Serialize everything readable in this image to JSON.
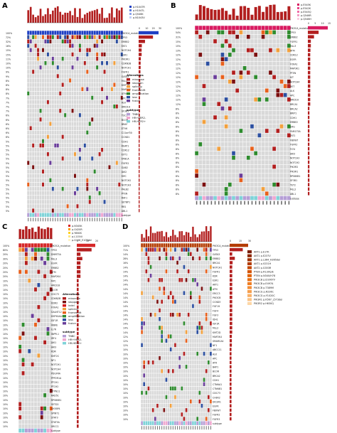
{
  "panels": [
    {
      "label": "A",
      "top_legend": [
        "p.H1047R",
        "p.H1047L",
        "p.Q546K",
        "p.N1043V"
      ],
      "top_legend_colors": [
        "#1e3fc4",
        "#5b7be0",
        "#8ea6ee",
        "#c2d0f7"
      ],
      "pct_scale": [
        "0",
        "10",
        "20",
        "30"
      ],
      "genes": [
        "PIK3CA_mutation",
        "TP53",
        "ERBB2",
        "FAT1",
        "NOTCH4",
        "ESR1",
        "PIK3R1",
        "CDKN2B",
        "NOTCH1",
        "FGFR1",
        "GATA3",
        "MLL2",
        "KMT2D",
        "MAP3K1",
        "ATM",
        "APC",
        "ALK",
        "ARID1A",
        "SF3B1",
        "TSC1",
        "BCOR",
        "BRAF",
        "ETV6",
        "C11orf30",
        "CCND1",
        "CDH1",
        "KEAP1",
        "CDK12",
        "EXT1",
        "FANCA",
        "FGFR2",
        "GAB2",
        "JAK2",
        "MYC",
        "NOTCH2",
        "NOTCH3",
        "PALB2",
        "PTEN",
        "RAF1",
        "SETBP1",
        "RB1",
        "ABL1",
        "subtype"
      ],
      "pcts": [
        "100%",
        "72%",
        "32%",
        "16%",
        "15%",
        "15%",
        "11%",
        "10%",
        "10%",
        "9%",
        "9%",
        "8%",
        "8%",
        "8%",
        "8%",
        "7%",
        "7%",
        "7%",
        "7%",
        "6%",
        "6%",
        "6%",
        "6%",
        "6%",
        "6%",
        "5%",
        "5%",
        "5%",
        "5%",
        "5%",
        "5%",
        "5%",
        "5%",
        "5%",
        "5%",
        "5%",
        "5%",
        "5%",
        "5%",
        "5%",
        "5%",
        "5%",
        ""
      ],
      "legend_title": "Alterations",
      "legend_items": [
        "missense",
        "stopgain",
        "splicing",
        "frameshift",
        "amplification",
        "loss",
        "fusion"
      ],
      "subtype_title": "subtype",
      "subtype_items": [
        "TNBC",
        "HR+HER2-",
        "HR-HER2+"
      ],
      "sample_count": 39
    },
    {
      "label": "B",
      "top_legend": [
        "p.E545K",
        "p.E542K",
        "p.E545Q",
        "p.Q546R",
        "p.Q546H"
      ],
      "top_legend_colors": [
        "#d81b60",
        "#e8438a",
        "#f06ea8",
        "#f59cc4",
        "#fbcde2"
      ],
      "pct_scale": [
        "0",
        "5",
        "10",
        "15"
      ],
      "genes": [
        "PIK3CA_mutation",
        "TP53",
        "ERBB2",
        "FGFR1",
        "MLL3",
        "ATM",
        "CDK12",
        "EGFR",
        "FOXA1",
        "MAP3K1",
        "PTEN",
        "KIT",
        "NOTCH4",
        "RET",
        "ALK",
        "APC",
        "ARID1A",
        "BRCA1",
        "BRCA2",
        "BRIP1",
        "CDH1",
        "ERBB3",
        "ERG",
        "FAM175A",
        "FAT1",
        "FBXW7",
        "FGFR2",
        "FLT4",
        "JAK3",
        "NOTCH3",
        "NOTCH2",
        "PIK3R2",
        "PIK3R1",
        "RPS6KB1",
        "SF3B1",
        "TET2",
        "MLL2",
        "ABL1",
        "subtype"
      ],
      "pcts": [
        "100%",
        "54%",
        "31%",
        "15%",
        "15%",
        "13%",
        "12%",
        "12%",
        "12%",
        "12%",
        "12%",
        "12%",
        "12%",
        "12%",
        "12%",
        "12%",
        "12%",
        "12%",
        "8%",
        "8%",
        "8%",
        "8%",
        "8%",
        "8%",
        "8%",
        "8%",
        "8%",
        "8%",
        "8%",
        "8%",
        "8%",
        "8%",
        "8%",
        "8%",
        "8%",
        "8%",
        "8%",
        "8%",
        ""
      ],
      "sample_count": 26
    },
    {
      "label": "C",
      "top_legend": [
        "p.N345K",
        "p.G420R",
        "p.Y880S",
        "p.L1154I",
        "p.G106_E109del"
      ],
      "top_legend_colors": [
        "#d62728",
        "#ff9900",
        "#ffd21f",
        "#ffe680",
        "#fff3c2"
      ],
      "pct_scale": [
        "0",
        "10",
        "20"
      ],
      "genes": [
        "PIK3CA_mutation",
        "TP53",
        "DNMT3A",
        "MLL3",
        "EGFR",
        "ERBB2",
        "ATM",
        "MAP2K4",
        "MYC",
        "ARID1B",
        "BCOR",
        "CDC73",
        "CDKN2B",
        "DDR2",
        "FOXA1",
        "GALNT12",
        "HSP90AA1",
        "IGF1R",
        "IKBKE",
        "IL7R",
        "INPPL1",
        "IRF4",
        "JAK1",
        "JAK3",
        "KDR",
        "KMT2C",
        "NF1",
        "NOTCH1",
        "NOTCH4",
        "PDGFRA",
        "PPP2R1A",
        "PTCH1",
        "PTCH2",
        "PTPN11",
        "RAD51",
        "RPS6KB1",
        "SETD2",
        "SH3BP4",
        "SPINT1",
        "STAT3",
        "STAT5A",
        "XRCC1",
        "subtype"
      ],
      "pcts": [
        "100%",
        "80%",
        "20%",
        "30%",
        "20%",
        "20%",
        "20%",
        "20%",
        "10%",
        "10%",
        "10%",
        "10%",
        "10%",
        "10%",
        "10%",
        "10%",
        "10%",
        "10%",
        "10%",
        "10%",
        "10%",
        "10%",
        "10%",
        "10%",
        "10%",
        "10%",
        "10%",
        "10%",
        "10%",
        "10%",
        "10%",
        "10%",
        "10%",
        "10%",
        "10%",
        "10%",
        "10%",
        "10%",
        "10%",
        "10%",
        "10%",
        "10%",
        ""
      ],
      "legend_title": "Alterations",
      "legend_items": [
        "missense",
        "stopgain",
        "indel",
        "splicing",
        "frameshift",
        "amplification",
        "loss",
        "fusion"
      ],
      "subtype_title": "subtype",
      "subtype_items": [
        "TNBC",
        "HR+HER2-",
        "HR-HER2+"
      ],
      "sample_count": 11
    },
    {
      "label": "D",
      "top_legend": [
        "AKT1 p.E17K",
        "AKT1 p.E237V",
        "AKT1 p.L364_H365del",
        "AKT1 p.V231H",
        "AKT2 p.G353R",
        "PTEN p.R130Q/E",
        "PTEN p.N340/H78",
        "PIK3CB p.D1067V",
        "PIK3CB p.E497A",
        "PIK3CB p.T389M",
        "PIK3CG p.R226C",
        "PIK3CG p.Y1020C",
        "PIK3R1 p.K567_L573del",
        "PIK3R2 p.H630Q"
      ],
      "top_legend_colors": [
        "#7a1c00",
        "#8d2600",
        "#a03000",
        "#b33b00",
        "#c44700",
        "#d55300",
        "#e06000",
        "#e86e10",
        "#ef7d22",
        "#f38d36",
        "#f69e4c",
        "#f9b066",
        "#fbc384",
        "#fdd7a6"
      ],
      "pct_scale": [
        "0",
        "15",
        "30"
      ],
      "genes": [
        "PIK3CA_mutation",
        "TP53",
        "GATA3",
        "ERBB2",
        "BRCA1",
        "NOTCH1",
        "FGFR1",
        "KDR",
        "ESR1",
        "AKT1",
        "ATM",
        "ERCC3",
        "PIK3CB",
        "CCND3",
        "FGF19",
        "FGF4",
        "FGF3",
        "IDH1",
        "IGF1R",
        "MLL2",
        "KMT2D",
        "MAP2K4",
        "SMARCA4",
        "NF1",
        "ABCC11",
        "ALK",
        "APC",
        "ATR",
        "BAP1",
        "BCOR",
        "BRCA2",
        "CDH1",
        "CTNNA1",
        "CTNNB1",
        "CDC73",
        "CHEK2",
        "DICER1",
        "EGFR",
        "FBXW7",
        "FGFR2",
        "FGFR3",
        "subtype"
      ],
      "pcts": [
        "100%",
        "71%",
        "14%",
        "28%",
        "16%",
        "14%",
        "14%",
        "14%",
        "14%",
        "14%",
        "14%",
        "14%",
        "14%",
        "14%",
        "14%",
        "14%",
        "14%",
        "14%",
        "14%",
        "14%",
        "14%",
        "12%",
        "12%",
        "12%",
        "10%",
        "10%",
        "10%",
        "10%",
        "10%",
        "10%",
        "10%",
        "10%",
        "10%",
        "10%",
        "10%",
        "10%",
        "10%",
        "10%",
        "10%",
        "10%",
        "10%",
        ""
      ],
      "sample_count": 32
    }
  ],
  "alteration_colors": {
    "missense": "#b21f1f",
    "stopgain": "#7b1010",
    "indel": "#d7191c",
    "splicing": "#f2a03d",
    "frameshift": "#e8601c",
    "amplification": "#2e8b2e",
    "loss": "#2c4fa0",
    "fusion": "#6a3d9a",
    "none": "#d9d9d9"
  },
  "subtype_colors": {
    "TNBC": "#b59fd6",
    "HR+HER2-": "#f0a8d0",
    "HR-HER2+": "#7fd3d8"
  }
}
